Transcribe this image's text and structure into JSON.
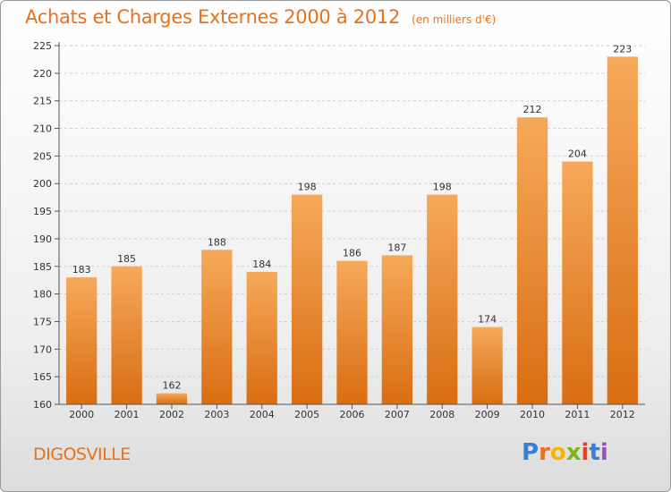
{
  "header": {
    "title": "Achats et Charges Externes 2000 à 2012",
    "subtitle": "(en milliers d'€)"
  },
  "footer": {
    "commune": "DIGOSVILLE",
    "logo_letters": [
      "P",
      "r",
      "o",
      "x",
      "i",
      "t",
      "i"
    ],
    "logo_colors": [
      "#3b7fd4",
      "#e8711c",
      "#f2b705",
      "#7ab51d",
      "#e8431c",
      "#3b7fd4",
      "#9b4fbf"
    ]
  },
  "colors": {
    "bar_light": "#f6a95a",
    "bar_dark": "#d96d12",
    "accent": "#e8711c"
  },
  "chart_data": {
    "type": "bar",
    "categories": [
      "2000",
      "2001",
      "2002",
      "2003",
      "2004",
      "2005",
      "2006",
      "2007",
      "2008",
      "2009",
      "2010",
      "2011",
      "2012"
    ],
    "values": [
      183,
      185,
      162,
      188,
      184,
      198,
      186,
      187,
      198,
      174,
      212,
      204,
      223
    ],
    "ylim": [
      160,
      225
    ],
    "yticks": [
      "160",
      "165",
      "170",
      "175",
      "180",
      "185",
      "190",
      "195",
      "200",
      "205",
      "210",
      "215",
      "220",
      "225"
    ],
    "grid": true,
    "legend": "none"
  }
}
